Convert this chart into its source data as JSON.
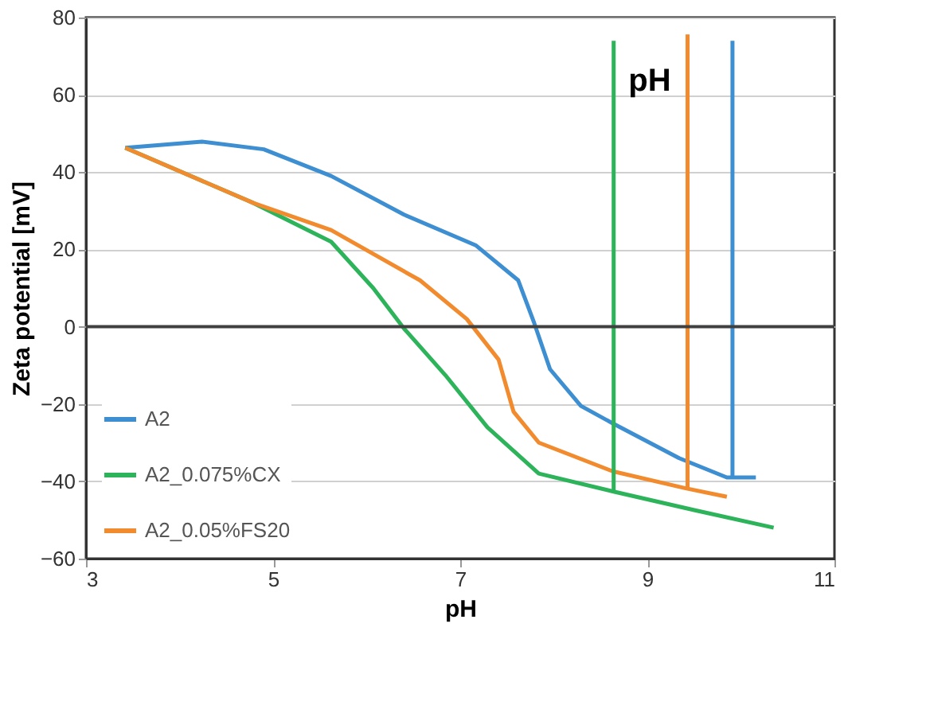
{
  "chart_data": {
    "type": "line",
    "xlabel": "pH",
    "ylabel": "Zeta potential [mV]",
    "xlim": [
      3,
      11
    ],
    "xticks": [
      3,
      5,
      7,
      9,
      11
    ],
    "ylim": [
      -60,
      80
    ],
    "yticks": [
      -60,
      -40,
      -20,
      0,
      20,
      40,
      60,
      80
    ],
    "grid": "y",
    "legend": "bottom left",
    "ref_lines": [
      {
        "axis": "y",
        "value": 0,
        "label": null,
        "color": "#404040"
      }
    ],
    "annotations": [
      "pH"
    ],
    "series": [
      {
        "name": "A2",
        "color": "#3d8fd1",
        "x": [
          3.42,
          4.24,
          4.9,
          5.62,
          6.4,
          7.17,
          7.62,
          7.79,
          7.96,
          8.29,
          8.63,
          9.34,
          9.85,
          10.16
        ],
        "values": [
          46.3,
          47.9,
          45.9,
          39,
          29,
          21,
          12,
          1,
          -11,
          -20.5,
          -25,
          -34,
          -39,
          -39
        ]
      },
      {
        "name": "A2_0.075%CX",
        "color": "#2db35a",
        "x": [
          3.42,
          4.79,
          5.62,
          6.07,
          6.4,
          6.84,
          7.29,
          7.84,
          8.63,
          9.51,
          10.35
        ],
        "values": [
          46.3,
          32,
          22,
          10,
          -0.5,
          -12.5,
          -26,
          -38,
          -42.6,
          -47.5,
          -52
        ]
      },
      {
        "name": "A2_0.05%FS20",
        "color": "#f28a2e",
        "x": [
          3.42,
          4.79,
          5.62,
          6.57,
          7.07,
          7.41,
          7.57,
          7.84,
          8.63,
          9.41,
          9.85
        ],
        "values": [
          46.3,
          32,
          25,
          12,
          2,
          -8.5,
          -22,
          -30,
          -37.4,
          -41.8,
          -44
        ]
      },
      {
        "color": "#2db35a",
        "x": [
          8.64,
          8.64
        ],
        "values": [
          -42.6,
          74
        ]
      },
      {
        "color": "#f28a2e",
        "x": [
          9.43,
          9.43
        ],
        "values": [
          -41.8,
          75.6
        ]
      },
      {
        "color": "#3d8fd1",
        "x": [
          9.91,
          9.91
        ],
        "values": [
          -39,
          74
        ]
      }
    ]
  }
}
